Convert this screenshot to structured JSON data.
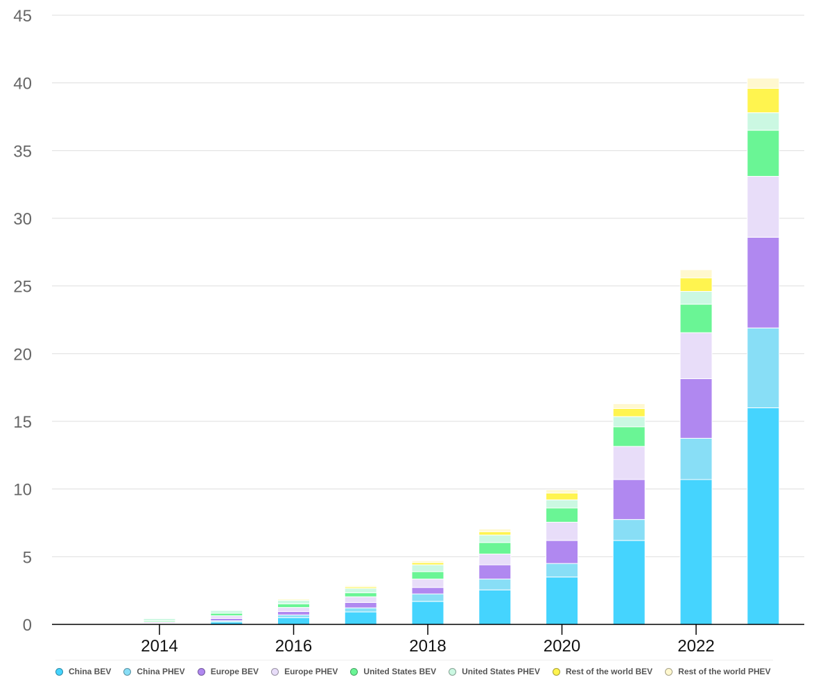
{
  "chart_data": {
    "type": "bar",
    "stacked": true,
    "title": "",
    "xlabel": "",
    "ylabel": "",
    "ylim": [
      0,
      45
    ],
    "yticks": [
      0,
      5,
      10,
      15,
      20,
      25,
      30,
      35,
      40,
      45
    ],
    "x_tick_labels": [
      "2014",
      "2016",
      "2018",
      "2020",
      "2022"
    ],
    "categories": [
      2013,
      2014,
      2015,
      2016,
      2017,
      2018,
      2019,
      2020,
      2021,
      2022,
      2023
    ],
    "grid": true,
    "legend_position": "bottom",
    "series": [
      {
        "name": "China BEV",
        "color": "#45d4fe",
        "values": [
          0.0,
          0.05,
          0.18,
          0.5,
          0.92,
          1.7,
          2.55,
          3.5,
          6.2,
          10.7,
          16.0
        ]
      },
      {
        "name": "China PHEV",
        "color": "#88def6",
        "values": [
          0.0,
          0.03,
          0.09,
          0.2,
          0.3,
          0.55,
          0.8,
          1.0,
          1.55,
          3.05,
          5.9
        ]
      },
      {
        "name": "Europe BEV",
        "color": "#b088f0",
        "values": [
          0.0,
          0.07,
          0.17,
          0.25,
          0.4,
          0.48,
          1.05,
          1.7,
          2.95,
          4.4,
          6.7
        ]
      },
      {
        "name": "Europe PHEV",
        "color": "#e8ddf9",
        "values": [
          0.0,
          0.05,
          0.2,
          0.3,
          0.42,
          0.62,
          0.8,
          1.35,
          2.45,
          3.4,
          4.5
        ]
      },
      {
        "name": "United States BEV",
        "color": "#6af595",
        "values": [
          0.0,
          0.08,
          0.18,
          0.27,
          0.3,
          0.55,
          0.85,
          1.05,
          1.45,
          2.1,
          3.4
        ]
      },
      {
        "name": "United States PHEV",
        "color": "#cbf8e2",
        "values": [
          0.0,
          0.15,
          0.21,
          0.26,
          0.32,
          0.5,
          0.55,
          0.6,
          0.75,
          0.95,
          1.3
        ]
      },
      {
        "name": "Rest of the world BEV",
        "color": "#fff44f",
        "values": [
          0.0,
          0.02,
          0.04,
          0.07,
          0.11,
          0.17,
          0.25,
          0.5,
          0.6,
          1.0,
          1.8
        ]
      },
      {
        "name": "Rest of the world PHEV",
        "color": "#fff8cf",
        "values": [
          0.0,
          0.02,
          0.04,
          0.06,
          0.09,
          0.13,
          0.2,
          0.25,
          0.35,
          0.6,
          0.75
        ]
      }
    ]
  }
}
